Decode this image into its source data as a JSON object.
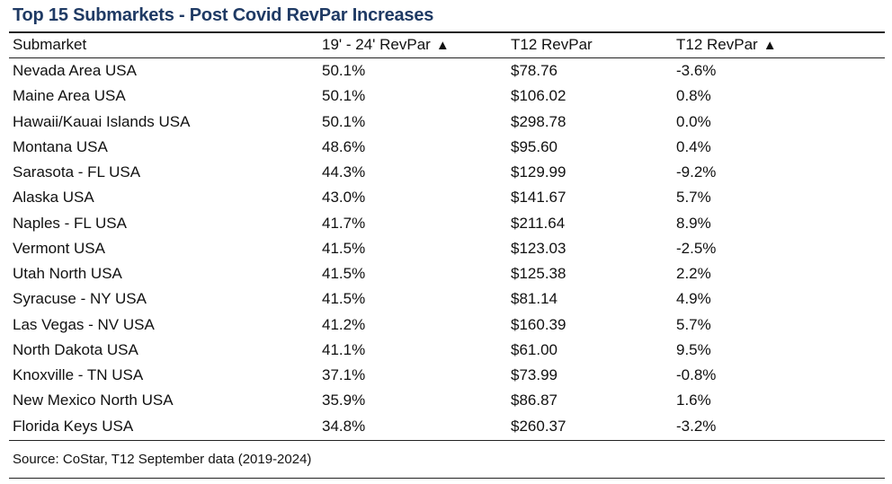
{
  "title": "Top 15 Submarkets - Post Covid RevPar Increases",
  "header": {
    "submarket": "Submarket",
    "revpar_change": "19' - 24' RevPar",
    "t12_revpar": "T12 RevPar",
    "t12_change": "T12 RevPar",
    "sort_indicator": "▲"
  },
  "rows": [
    {
      "submarket": "Nevada Area USA",
      "change": "50.1%",
      "t12": "$78.76",
      "t12_change": "-3.6%"
    },
    {
      "submarket": "Maine Area USA",
      "change": "50.1%",
      "t12": "$106.02",
      "t12_change": "0.8%"
    },
    {
      "submarket": "Hawaii/Kauai Islands USA",
      "change": "50.1%",
      "t12": "$298.78",
      "t12_change": "0.0%"
    },
    {
      "submarket": "Montana USA",
      "change": "48.6%",
      "t12": "$95.60",
      "t12_change": "0.4%"
    },
    {
      "submarket": "Sarasota - FL USA",
      "change": "44.3%",
      "t12": "$129.99",
      "t12_change": "-9.2%"
    },
    {
      "submarket": "Alaska USA",
      "change": "43.0%",
      "t12": "$141.67",
      "t12_change": "5.7%"
    },
    {
      "submarket": "Naples - FL USA",
      "change": "41.7%",
      "t12": "$211.64",
      "t12_change": "8.9%"
    },
    {
      "submarket": "Vermont USA",
      "change": "41.5%",
      "t12": "$123.03",
      "t12_change": "-2.5%"
    },
    {
      "submarket": "Utah North USA",
      "change": "41.5%",
      "t12": "$125.38",
      "t12_change": "2.2%"
    },
    {
      "submarket": "Syracuse - NY USA",
      "change": "41.5%",
      "t12": "$81.14",
      "t12_change": "4.9%"
    },
    {
      "submarket": "Las Vegas - NV USA",
      "change": "41.2%",
      "t12": "$160.39",
      "t12_change": "5.7%"
    },
    {
      "submarket": "North Dakota USA",
      "change": "41.1%",
      "t12": "$61.00",
      "t12_change": "9.5%"
    },
    {
      "submarket": "Knoxville - TN USA",
      "change": "37.1%",
      "t12": "$73.99",
      "t12_change": "-0.8%"
    },
    {
      "submarket": "New Mexico North USA",
      "change": "35.9%",
      "t12": "$86.87",
      "t12_change": "1.6%"
    },
    {
      "submarket": "Florida Keys USA",
      "change": "34.8%",
      "t12": "$260.37",
      "t12_change": "-3.2%"
    }
  ],
  "source": "Source: CoStar, T12 September data (2019-2024)",
  "colors": {
    "title": "#1f3a64",
    "text": "#111111",
    "rule": "#222222"
  },
  "chart_data": {
    "type": "table",
    "title": "Top 15 Submarkets - Post Covid RevPar Increases",
    "columns": [
      "Submarket",
      "19' - 24' RevPar ▲",
      "T12 RevPar",
      "T12 RevPar ▲"
    ],
    "rows": [
      [
        "Nevada Area USA",
        "50.1%",
        "$78.76",
        "-3.6%"
      ],
      [
        "Maine Area USA",
        "50.1%",
        "$106.02",
        "0.8%"
      ],
      [
        "Hawaii/Kauai Islands USA",
        "50.1%",
        "$298.78",
        "0.0%"
      ],
      [
        "Montana USA",
        "48.6%",
        "$95.60",
        "0.4%"
      ],
      [
        "Sarasota - FL USA",
        "44.3%",
        "$129.99",
        "-9.2%"
      ],
      [
        "Alaska USA",
        "43.0%",
        "$141.67",
        "5.7%"
      ],
      [
        "Naples - FL USA",
        "41.7%",
        "$211.64",
        "8.9%"
      ],
      [
        "Vermont USA",
        "41.5%",
        "$123.03",
        "-2.5%"
      ],
      [
        "Utah North USA",
        "41.5%",
        "$125.38",
        "2.2%"
      ],
      [
        "Syracuse - NY USA",
        "41.5%",
        "$81.14",
        "4.9%"
      ],
      [
        "Las Vegas - NV USA",
        "41.2%",
        "$160.39",
        "5.7%"
      ],
      [
        "North Dakota USA",
        "41.1%",
        "$61.00",
        "9.5%"
      ],
      [
        "Knoxville - TN USA",
        "37.1%",
        "$73.99",
        "-0.8%"
      ],
      [
        "New Mexico North USA",
        "35.9%",
        "$86.87",
        "1.6%"
      ],
      [
        "Florida Keys USA",
        "34.8%",
        "$260.37",
        "-3.2%"
      ]
    ],
    "source": "Source: CoStar, T12 September data (2019-2024)"
  }
}
